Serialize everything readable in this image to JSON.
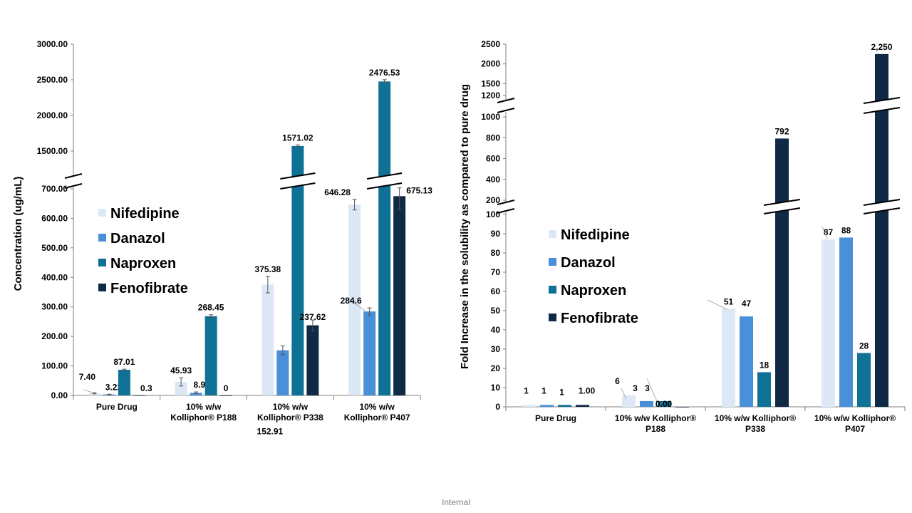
{
  "footer": "Internal",
  "colors": {
    "Nifedipine": "#dce8f5",
    "Danazol": "#4a90d9",
    "Naproxen": "#0f7195",
    "Fenofibrate": "#102a46"
  },
  "chart_data": [
    {
      "type": "bar",
      "ylabel": "Concentration (ug/mL)",
      "categories": [
        [
          "Pure Drug"
        ],
        [
          "10% w/w",
          "Kolliphor® P188"
        ],
        [
          "10% w/w",
          "Kolliphor® P338"
        ],
        [
          "10% w/w",
          "Kolliphor® P407"
        ]
      ],
      "series": [
        {
          "name": "Nifedipine",
          "values": [
            7.4,
            45.93,
            375.38,
            646.28
          ],
          "labels": [
            "7.40",
            "45.93",
            "375.38",
            "646.28"
          ],
          "errors": [
            2,
            14,
            28,
            18
          ]
        },
        {
          "name": "Danazol",
          "values": [
            3.22,
            8.91,
            152.91,
            284.6
          ],
          "labels": [
            "3.22",
            "8.91",
            "152.91",
            "284.6"
          ],
          "errors": [
            1,
            3,
            15,
            12
          ]
        },
        {
          "name": "Naproxen",
          "values": [
            87.01,
            268.45,
            1571.02,
            2476.53
          ],
          "labels": [
            "87.01",
            "268.45",
            "1571.02",
            "2476.53"
          ],
          "errors": [
            2,
            5,
            15,
            25
          ]
        },
        {
          "name": "Fenofibrate",
          "values": [
            0.3,
            0,
            237.62,
            675.13
          ],
          "labels": [
            "0.3",
            "0",
            "237.62",
            "675.13"
          ],
          "errors": [
            0,
            0,
            18,
            45
          ]
        }
      ],
      "axis_break": {
        "lower": [
          0,
          700
        ],
        "upper": [
          1500,
          3000
        ]
      },
      "yticks_lower": [
        "0.00",
        "100.00",
        "200.00",
        "300.00",
        "400.00",
        "500.00",
        "600.00",
        "700.00"
      ],
      "yticks_upper": [
        "1500.00",
        "2000.00",
        "2500.00",
        "3000.00"
      ],
      "legend": "left-middle",
      "grid": false
    },
    {
      "type": "bar",
      "ylabel": "Fold  Increase in the solubility as compared to pure drug",
      "categories": [
        [
          "Pure Drug"
        ],
        [
          "10% w/w Kolliphor®",
          "P188"
        ],
        [
          "10% w/w Kolliphor®",
          "P338"
        ],
        [
          "10% w/w Kolliphor®",
          "P407"
        ]
      ],
      "series": [
        {
          "name": "Nifedipine",
          "values": [
            1,
            6,
            51,
            87
          ],
          "labels": [
            "1",
            "6",
            "51",
            "87"
          ]
        },
        {
          "name": "Danazol",
          "values": [
            1,
            3,
            47,
            88
          ],
          "labels": [
            "1",
            "3",
            "47",
            "88"
          ]
        },
        {
          "name": "Naproxen",
          "values": [
            1,
            3,
            18,
            28
          ],
          "labels": [
            "1",
            "3",
            "18",
            "28"
          ]
        },
        {
          "name": "Fenofibrate",
          "values": [
            1.0,
            0.0,
            792,
            2250
          ],
          "labels": [
            "1.00",
            "0.00",
            "792",
            "2,250"
          ]
        }
      ],
      "axis_breaks": {
        "low": [
          0,
          100
        ],
        "mid": [
          200,
          1000
        ],
        "high": [
          1200,
          2500
        ]
      },
      "yticks_low": [
        "0",
        "10",
        "20",
        "30",
        "40",
        "50",
        "60",
        "70",
        "80",
        "90",
        "100"
      ],
      "yticks_mid": [
        "200",
        "400",
        "600",
        "800",
        "1000"
      ],
      "yticks_high": [
        "1200",
        "1500",
        "2000",
        "2500"
      ],
      "legend": "left-middle",
      "grid": false
    }
  ]
}
